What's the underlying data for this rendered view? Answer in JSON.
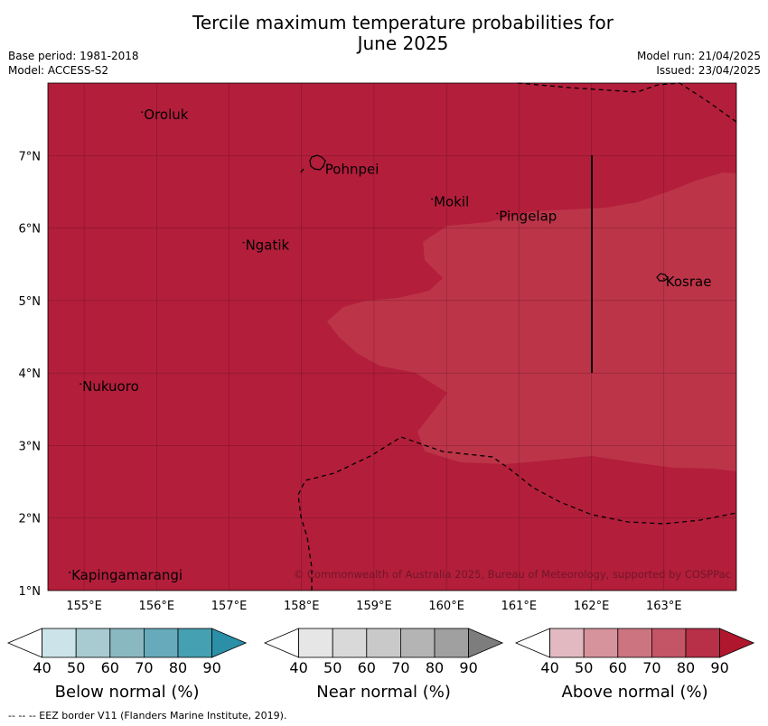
{
  "title_line1": "Tercile maximum temperature probabilities for",
  "title_line2": "June 2025",
  "meta": {
    "base_period": "Base period: 1981-2018",
    "model": "Model: ACCESS-S2",
    "model_run": "Model run: 21/04/2025",
    "issued": "Issued: 23/04/2025"
  },
  "map": {
    "lon_range": [
      154.5,
      164.0
    ],
    "lat_range": [
      1.0,
      8.0
    ],
    "lon_ticks": [
      "155°E",
      "156°E",
      "157°E",
      "158°E",
      "159°E",
      "160°E",
      "161°E",
      "162°E",
      "163°E"
    ],
    "lat_ticks": [
      "1°N",
      "2°N",
      "3°N",
      "4°N",
      "5°N",
      "6°N",
      "7°N"
    ],
    "places": [
      {
        "name": "Oroluk",
        "lon": 155.8,
        "lat": 7.6
      },
      {
        "name": "Pohnpei",
        "lon": 158.3,
        "lat": 6.85
      },
      {
        "name": "Mokil",
        "lon": 159.8,
        "lat": 6.4
      },
      {
        "name": "Pingelap",
        "lon": 160.7,
        "lat": 6.2
      },
      {
        "name": "Ngatik",
        "lon": 157.2,
        "lat": 5.8
      },
      {
        "name": "Kosrae",
        "lon": 163.0,
        "lat": 5.3
      },
      {
        "name": "Nukuoro",
        "lon": 154.95,
        "lat": 3.85
      },
      {
        "name": "Kapingamarangi",
        "lon": 154.8,
        "lat": 1.25
      }
    ],
    "category_colors": {
      "above_80_90": "#b31e3b",
      "above_70_80": "#bc3448"
    },
    "copyright": "© Commonwealth of Australia 2025, Bureau of Meteorology, supported by COSPPac"
  },
  "legends": [
    {
      "label": "Below normal (%)",
      "ticks": [
        "40",
        "50",
        "60",
        "70",
        "80",
        "90"
      ],
      "colors": [
        "#ffffff",
        "#cbe3e9",
        "#a7cbd1",
        "#8ab8c1",
        "#66aabb",
        "#45a0b1",
        "#2b8fa8"
      ]
    },
    {
      "label": "Near normal (%)",
      "ticks": [
        "40",
        "50",
        "60",
        "70",
        "80",
        "90"
      ],
      "colors": [
        "#ffffff",
        "#e6e6e6",
        "#d9d9d9",
        "#c9c9c9",
        "#b4b4b4",
        "#a0a0a0",
        "#7d7d7d"
      ]
    },
    {
      "label": "Above normal (%)",
      "ticks": [
        "40",
        "50",
        "60",
        "70",
        "80",
        "90"
      ],
      "colors": [
        "#ffffff",
        "#e2b9c0",
        "#d6939c",
        "#cc7480",
        "#c35566",
        "#b82f48",
        "#b0172f"
      ]
    }
  ],
  "footer": "--  --  -- EEZ border V11 (Flanders Marine Institute, 2019)."
}
